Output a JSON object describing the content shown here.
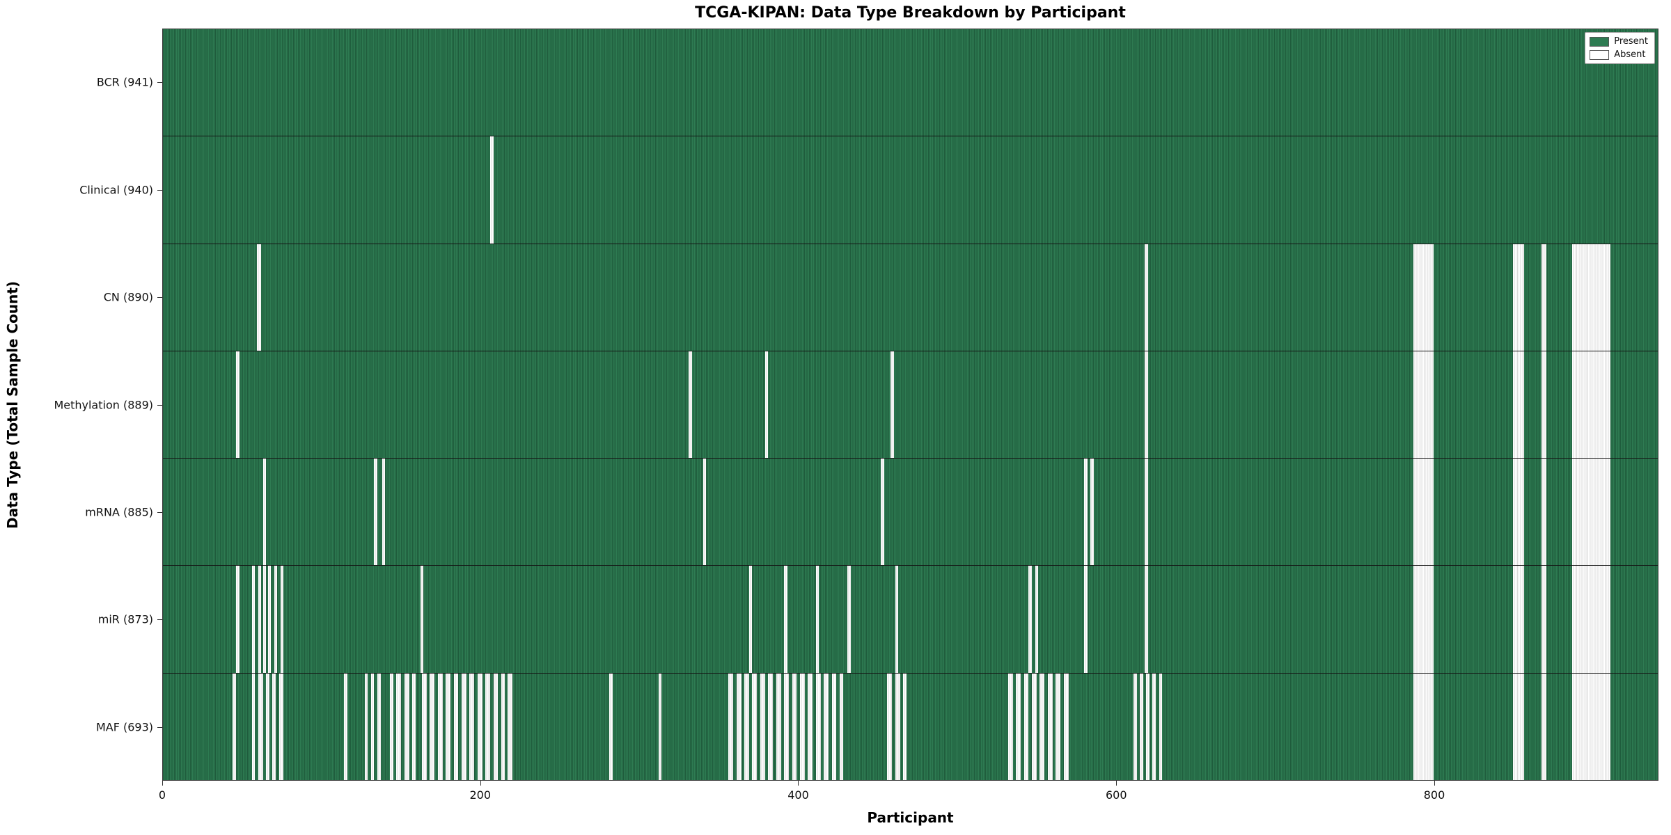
{
  "chart_data": {
    "type": "heatmap",
    "title": "TCGA-KIPAN: Data Type Breakdown by Participant",
    "xlabel": "Participant",
    "ylabel": "Data Type (Total Sample Count)",
    "x_min": 0,
    "x_max": 941,
    "x_ticks": [
      0,
      200,
      400,
      600,
      800
    ],
    "grid": false,
    "legend_position": "upper right",
    "legend": [
      {
        "label": "Present",
        "color": "#2e7b52"
      },
      {
        "label": "Absent",
        "color": "#ffffff"
      }
    ],
    "colors": {
      "present": "#2e7b52",
      "present_edge": "#1f5c3c",
      "absent": "#e4e4e4",
      "row_divider": "#141414"
    },
    "rows": [
      {
        "label": "BCR (941)",
        "total": 941,
        "absent_intervals": []
      },
      {
        "label": "Clinical (940)",
        "total": 940,
        "absent_intervals": [
          [
            206,
            208
          ]
        ]
      },
      {
        "label": "CN (890)",
        "total": 890,
        "absent_intervals": [
          [
            59,
            62
          ],
          [
            618,
            620
          ],
          [
            787,
            800
          ],
          [
            850,
            857
          ],
          [
            868,
            871
          ],
          [
            887,
            911
          ]
        ]
      },
      {
        "label": "Methylation (889)",
        "total": 889,
        "absent_intervals": [
          [
            46,
            48
          ],
          [
            331,
            333
          ],
          [
            379,
            381
          ],
          [
            458,
            460
          ],
          [
            618,
            620
          ],
          [
            787,
            800
          ],
          [
            850,
            857
          ],
          [
            868,
            871
          ],
          [
            887,
            911
          ]
        ]
      },
      {
        "label": "mRNA (885)",
        "total": 885,
        "absent_intervals": [
          [
            63,
            65
          ],
          [
            133,
            135
          ],
          [
            138,
            140
          ],
          [
            340,
            342
          ],
          [
            452,
            454
          ],
          [
            580,
            582
          ],
          [
            584,
            586
          ],
          [
            618,
            620
          ],
          [
            787,
            800
          ],
          [
            850,
            857
          ],
          [
            868,
            871
          ],
          [
            887,
            911
          ]
        ]
      },
      {
        "label": "miR (873)",
        "total": 873,
        "absent_intervals": [
          [
            46,
            48
          ],
          [
            56,
            58
          ],
          [
            60,
            62
          ],
          [
            63,
            65
          ],
          [
            66,
            68
          ],
          [
            70,
            72
          ],
          [
            74,
            76
          ],
          [
            162,
            164
          ],
          [
            369,
            371
          ],
          [
            391,
            393
          ],
          [
            411,
            413
          ],
          [
            431,
            433
          ],
          [
            461,
            463
          ],
          [
            545,
            547
          ],
          [
            549,
            551
          ],
          [
            580,
            582
          ],
          [
            618,
            620
          ],
          [
            787,
            800
          ],
          [
            850,
            857
          ],
          [
            868,
            871
          ],
          [
            887,
            911
          ]
        ]
      },
      {
        "label": "MAF (693)",
        "total": 693,
        "absent_intervals": [
          [
            44,
            46
          ],
          [
            56,
            58
          ],
          [
            60,
            63
          ],
          [
            65,
            67
          ],
          [
            69,
            71
          ],
          [
            73,
            76
          ],
          [
            114,
            116
          ],
          [
            127,
            129
          ],
          [
            131,
            133
          ],
          [
            135,
            137
          ],
          [
            143,
            145
          ],
          [
            147,
            150
          ],
          [
            152,
            155
          ],
          [
            157,
            159
          ],
          [
            163,
            166
          ],
          [
            168,
            171
          ],
          [
            173,
            176
          ],
          [
            178,
            181
          ],
          [
            183,
            186
          ],
          [
            188,
            191
          ],
          [
            193,
            196
          ],
          [
            198,
            201
          ],
          [
            203,
            206
          ],
          [
            208,
            211
          ],
          [
            213,
            215
          ],
          [
            217,
            220
          ],
          [
            281,
            283
          ],
          [
            312,
            314
          ],
          [
            356,
            359
          ],
          [
            361,
            364
          ],
          [
            366,
            369
          ],
          [
            371,
            374
          ],
          [
            376,
            379
          ],
          [
            381,
            384
          ],
          [
            386,
            389
          ],
          [
            391,
            394
          ],
          [
            396,
            399
          ],
          [
            401,
            404
          ],
          [
            406,
            409
          ],
          [
            411,
            414
          ],
          [
            416,
            419
          ],
          [
            421,
            424
          ],
          [
            426,
            428
          ],
          [
            456,
            459
          ],
          [
            461,
            464
          ],
          [
            466,
            468
          ],
          [
            532,
            535
          ],
          [
            537,
            540
          ],
          [
            542,
            545
          ],
          [
            547,
            550
          ],
          [
            552,
            555
          ],
          [
            557,
            560
          ],
          [
            562,
            565
          ],
          [
            567,
            570
          ],
          [
            611,
            613
          ],
          [
            615,
            617
          ],
          [
            619,
            621
          ],
          [
            623,
            625
          ],
          [
            627,
            629
          ],
          [
            787,
            800
          ],
          [
            850,
            857
          ],
          [
            868,
            871
          ],
          [
            887,
            911
          ]
        ]
      }
    ]
  }
}
